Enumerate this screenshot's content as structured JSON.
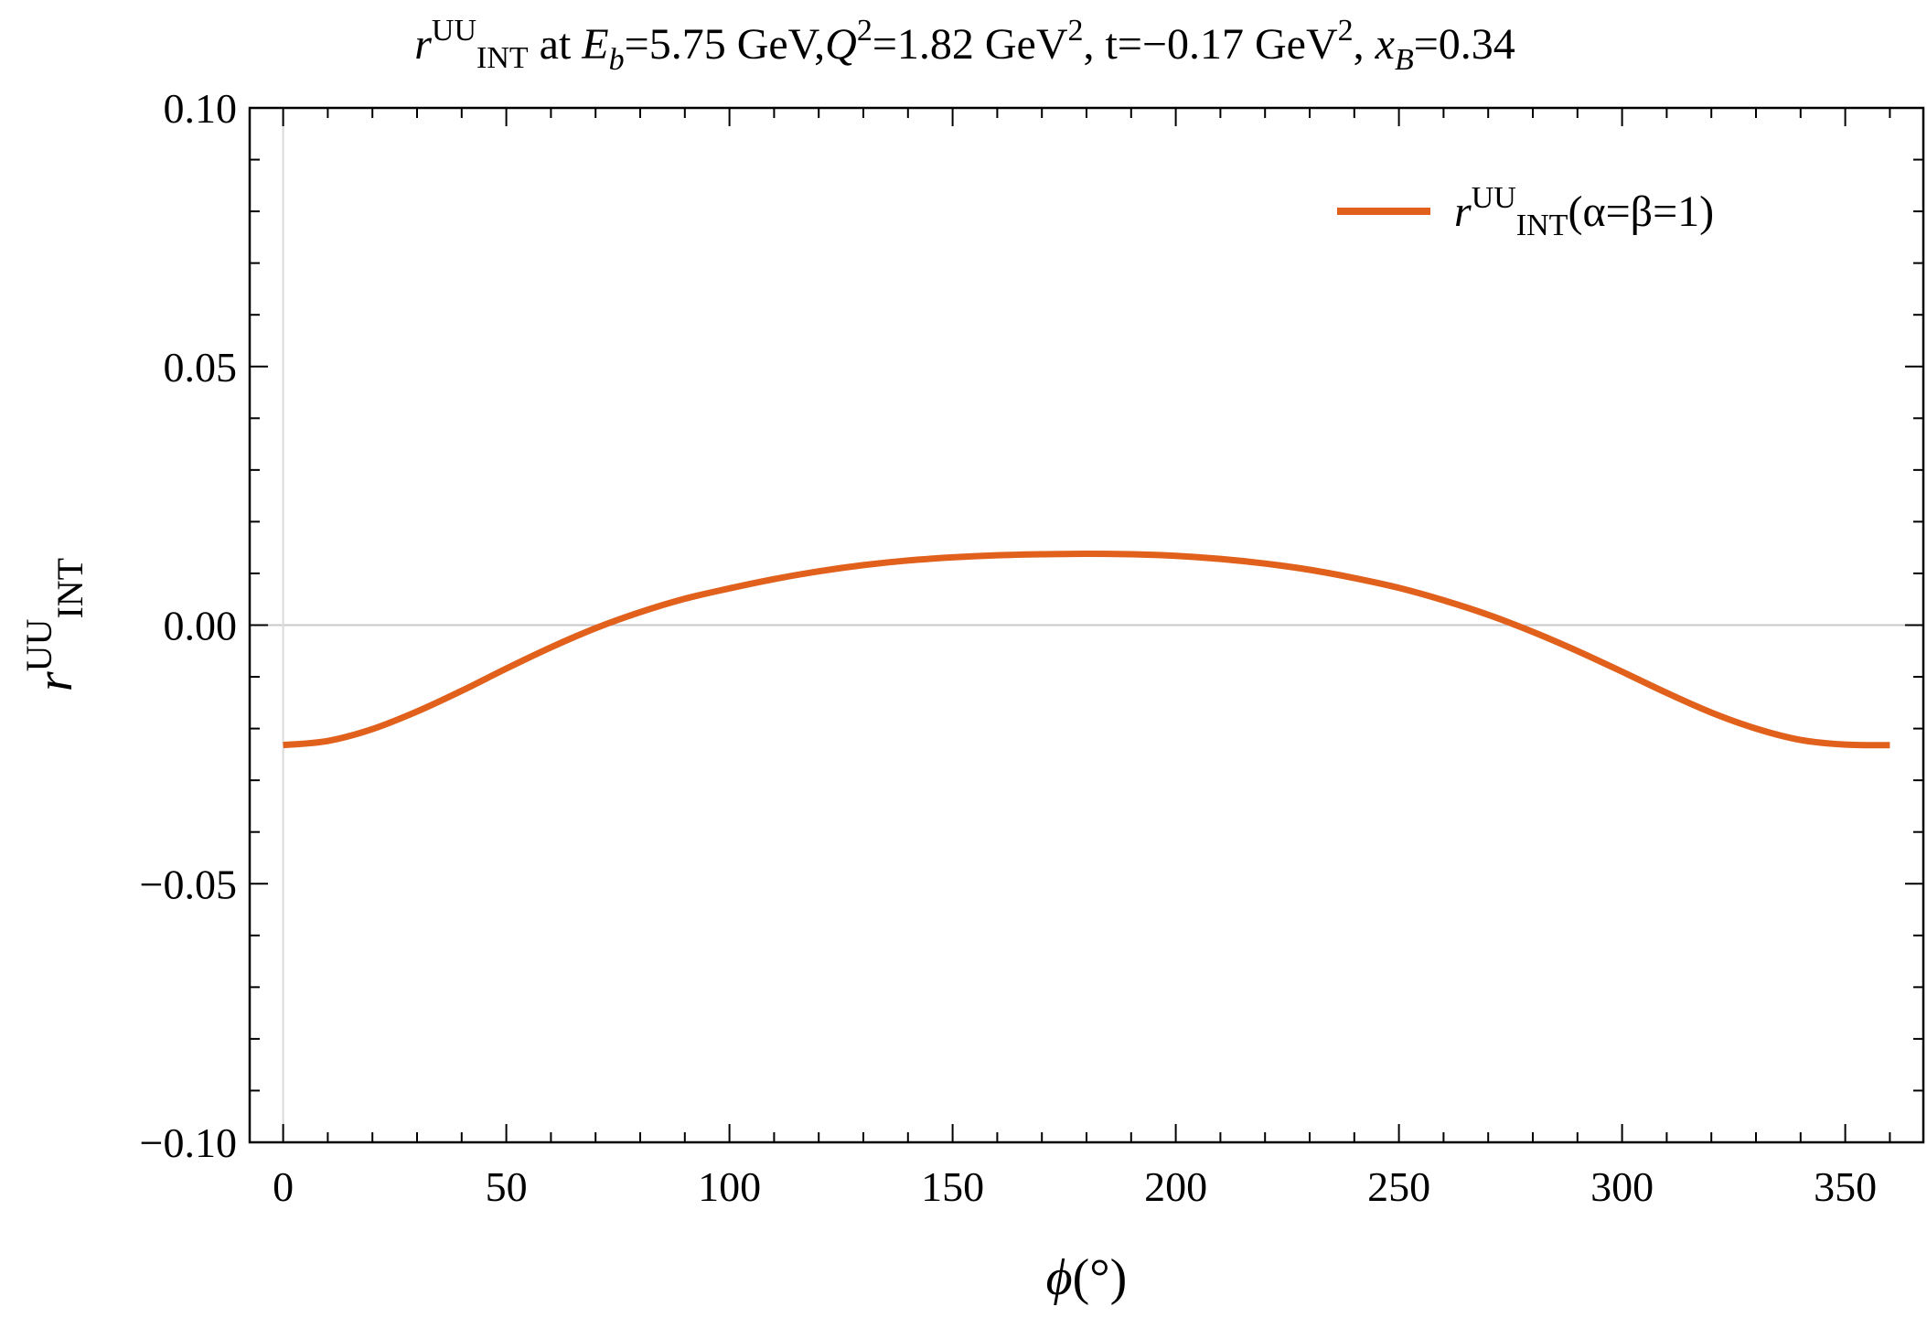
{
  "chart_data": {
    "type": "line",
    "title": {
      "r": "r",
      "r_sup": "UU",
      "r_sub": "INT",
      "at": " at ",
      "E": "E",
      "E_sub": "b",
      "e_rest": "=5.75 GeV,",
      "Q": "Q",
      "Q_sup": "2",
      "q_rest": "=1.82 GeV",
      "q_unit_sup": "2",
      "t_part": ", t=−0.17 GeV",
      "t_unit_sup": "2",
      "comma": ", ",
      "x": "x",
      "x_sub": "B",
      "x_rest": "=0.34"
    },
    "xlabel": {
      "phi": "ϕ",
      "unit": "(°)"
    },
    "ylabel": {
      "r": "r",
      "sup": "UU",
      "sub": "INT"
    },
    "xlim": [
      -7.5,
      367.5
    ],
    "ylim": [
      -0.1,
      0.1
    ],
    "x_ticks": [
      0,
      50,
      100,
      150,
      200,
      250,
      300,
      350
    ],
    "x_tick_labels": [
      "0",
      "50",
      "100",
      "150",
      "200",
      "250",
      "300",
      "350"
    ],
    "y_ticks": [
      -0.1,
      -0.05,
      0.0,
      0.05,
      0.1
    ],
    "y_tick_labels": [
      "−0.10",
      "−0.05",
      "0.00",
      "0.05",
      "0.10"
    ],
    "grid": false,
    "legend_position": "top-right",
    "series": [
      {
        "name": {
          "r": "r",
          "sup": "UU",
          "sub": "INT",
          "rest": "(α=β=1)"
        },
        "color": "#e0601c",
        "x": [
          0,
          10,
          20,
          30,
          40,
          50,
          60,
          70,
          80,
          90,
          100,
          110,
          120,
          130,
          140,
          150,
          160,
          170,
          180,
          190,
          200,
          210,
          220,
          230,
          240,
          250,
          260,
          270,
          280,
          290,
          300,
          310,
          320,
          330,
          340,
          350,
          360
        ],
        "y": [
          -0.0232,
          -0.0224,
          -0.0201,
          -0.0167,
          -0.0127,
          -0.0084,
          -0.0043,
          -0.0006,
          0.0025,
          0.0051,
          0.0071,
          0.0089,
          0.0104,
          0.0116,
          0.0125,
          0.0131,
          0.0135,
          0.0137,
          0.0138,
          0.0137,
          0.0134,
          0.0128,
          0.0119,
          0.0107,
          0.0091,
          0.0072,
          0.0048,
          0.002,
          -0.0013,
          -0.005,
          -0.009,
          -0.0131,
          -0.0169,
          -0.02,
          -0.0222,
          -0.0231,
          -0.0232
        ]
      }
    ]
  }
}
